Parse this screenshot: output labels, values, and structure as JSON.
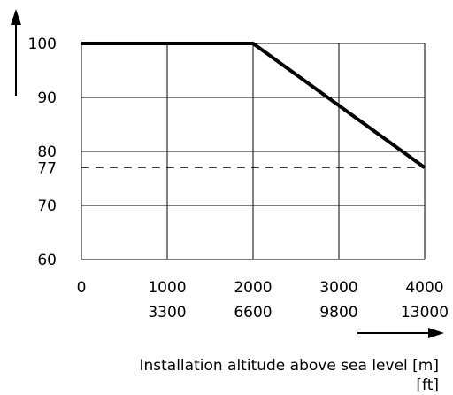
{
  "chart_data": {
    "type": "line",
    "title": "",
    "ylabel": "",
    "xlabel_lines": [
      "Installation altitude above sea level [m]",
      "[ft]"
    ],
    "x_ticks_m": [
      "0",
      "1000",
      "2000",
      "3000",
      "4000"
    ],
    "x_ticks_ft": [
      "",
      "3300",
      "6600",
      "9800",
      "13000"
    ],
    "y_ticks": [
      "100",
      "90",
      "80",
      "77",
      "70",
      "60"
    ],
    "xlim": [
      0,
      4000
    ],
    "ylim": [
      60,
      100
    ],
    "grid": true,
    "series": [
      {
        "x": [
          0,
          2000,
          4000
        ],
        "y": [
          100,
          100,
          77
        ]
      }
    ],
    "reference_lines": [
      {
        "y": 77,
        "style": "dashed"
      }
    ]
  }
}
